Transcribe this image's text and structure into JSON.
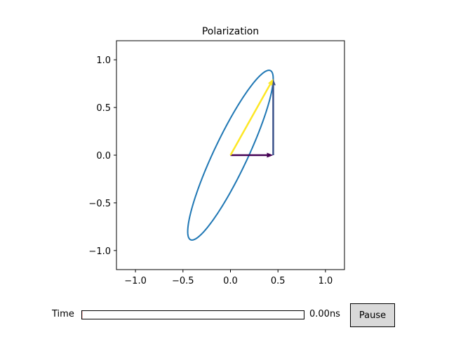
{
  "chart_data": {
    "type": "line",
    "title": "Polarization",
    "xlabel": "",
    "ylabel": "",
    "xlim": [
      -1.2,
      1.2
    ],
    "ylim": [
      -1.2,
      1.2
    ],
    "xticks": [
      "−1.0",
      "−0.5",
      "0.0",
      "0.5",
      "1.0"
    ],
    "xtick_values": [
      -1.0,
      -0.5,
      0.0,
      0.5,
      1.0
    ],
    "yticks": [
      "1.0",
      "0.5",
      "0.0",
      "−0.5",
      "−1.0"
    ],
    "ytick_values": [
      1.0,
      0.5,
      0.0,
      -0.5,
      -1.0
    ],
    "grid": false,
    "aspect": "equal",
    "series": [
      {
        "name": "polarization-ellipse",
        "kind": "parametric",
        "x_amplitude": 0.45,
        "y_amplitude": 0.89,
        "phase_rad": 0.45,
        "color": "#1f77b4"
      },
      {
        "name": "Ex-vector",
        "kind": "arrow",
        "from": [
          0,
          0
        ],
        "to": [
          0.45,
          0
        ],
        "color": "#440154"
      },
      {
        "name": "Ey-vector",
        "kind": "arrow",
        "from": [
          0.45,
          0
        ],
        "to": [
          0.45,
          0.8
        ],
        "color": "#3b528b"
      },
      {
        "name": "E-total-vector",
        "kind": "arrow",
        "from": [
          0,
          0
        ],
        "to": [
          0.45,
          0.8
        ],
        "color": "#fde725"
      }
    ]
  },
  "controls": {
    "slider_label": "Time",
    "slider_value_text": "0.00ns",
    "slider_value": 0,
    "pause_label": "Pause"
  }
}
